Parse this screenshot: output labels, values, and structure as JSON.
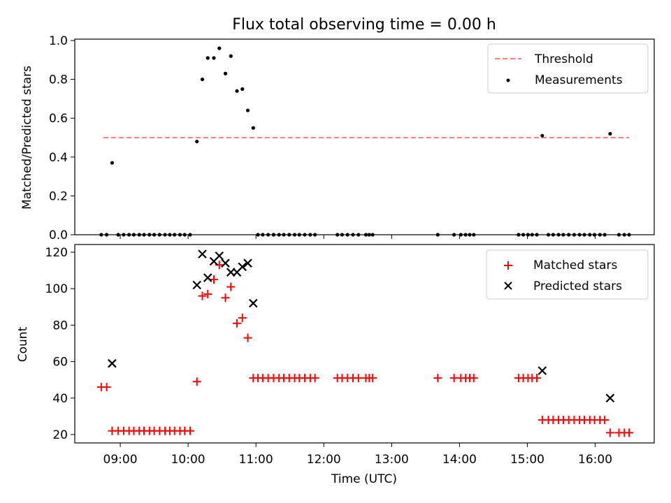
{
  "chart_data": [
    {
      "type": "scatter",
      "title": "Flux total observing time = 0.00 h",
      "xlabel": "",
      "ylabel": "Matched/Predicted stars",
      "ylim": [
        0,
        1.0
      ],
      "yticks": [
        0.0,
        0.2,
        0.4,
        0.6,
        0.8,
        1.0
      ],
      "ytick_labels": [
        "0.0",
        "0.2",
        "0.4",
        "0.6",
        "0.8",
        "1.0"
      ],
      "x_unit": "hours (UTC)",
      "xlim": [
        8.33,
        16.87
      ],
      "grid": false,
      "legend_position": "top-right",
      "threshold": {
        "name": "Threshold",
        "y": 0.5,
        "x_range": [
          8.75,
          16.5
        ],
        "color": "#ff7f7f"
      },
      "series": [
        {
          "name": "Measurements",
          "color": "#000000",
          "x": [
            8.72,
            8.8,
            8.88,
            8.97,
            9.05,
            9.13,
            9.2,
            9.28,
            9.35,
            9.43,
            9.5,
            9.58,
            9.66,
            9.73,
            9.8,
            9.88,
            9.95,
            10.03,
            10.13,
            10.21,
            10.29,
            10.38,
            10.46,
            10.55,
            10.63,
            10.72,
            10.8,
            10.88,
            10.96,
            11.03,
            11.1,
            11.18,
            11.26,
            11.34,
            11.41,
            11.49,
            11.57,
            11.64,
            11.72,
            11.8,
            11.87,
            12.2,
            12.27,
            12.35,
            12.43,
            12.51,
            12.62,
            12.67,
            12.72,
            13.68,
            13.92,
            14.02,
            14.09,
            14.15,
            14.21,
            14.87,
            14.94,
            15.01,
            15.07,
            15.14,
            15.22,
            15.31,
            15.38,
            15.46,
            15.53,
            15.61,
            15.69,
            15.77,
            15.84,
            15.92,
            15.99,
            16.07,
            16.14,
            16.22,
            16.35,
            16.43,
            16.5
          ],
          "y": [
            0,
            0,
            0.37,
            0,
            0,
            0,
            0,
            0,
            0,
            0,
            0,
            0,
            0,
            0,
            0,
            0,
            0,
            0,
            0.48,
            0.8,
            0.91,
            0.91,
            0.96,
            0.83,
            0.92,
            0.74,
            0.75,
            0.64,
            0.55,
            0,
            0,
            0,
            0,
            0,
            0,
            0,
            0,
            0,
            0,
            0,
            0,
            0,
            0,
            0,
            0,
            0,
            0,
            0,
            0,
            0,
            0,
            0,
            0,
            0,
            0,
            0,
            0,
            0,
            0,
            0,
            0.51,
            0,
            0,
            0,
            0,
            0,
            0,
            0,
            0,
            0,
            0,
            0,
            0,
            0.52,
            0,
            0,
            0
          ]
        }
      ]
    },
    {
      "type": "scatter",
      "title": "",
      "xlabel": "Time (UTC)",
      "ylabel": "Count",
      "ylim": [
        15.5,
        124
      ],
      "yticks": [
        20,
        40,
        60,
        80,
        100,
        120
      ],
      "ytick_labels": [
        "20",
        "40",
        "60",
        "80",
        "100",
        "120"
      ],
      "x_unit": "hours (UTC)",
      "xlim": [
        8.33,
        16.87
      ],
      "xticks": [
        9,
        10,
        11,
        12,
        13,
        14,
        15,
        16
      ],
      "xtick_labels": [
        "09:00",
        "10:00",
        "11:00",
        "12:00",
        "13:00",
        "14:00",
        "15:00",
        "16:00"
      ],
      "grid": false,
      "legend_position": "top-right",
      "series": [
        {
          "name": "Matched stars",
          "marker": "plus",
          "color": "#ff0000",
          "x": [
            8.72,
            8.8,
            8.88,
            8.97,
            9.05,
            9.13,
            9.2,
            9.28,
            9.35,
            9.43,
            9.5,
            9.58,
            9.66,
            9.73,
            9.8,
            9.88,
            9.95,
            10.03,
            10.13,
            10.21,
            10.29,
            10.38,
            10.46,
            10.55,
            10.63,
            10.72,
            10.8,
            10.88,
            10.96,
            11.03,
            11.1,
            11.18,
            11.26,
            11.34,
            11.41,
            11.49,
            11.57,
            11.64,
            11.72,
            11.8,
            11.87,
            12.2,
            12.27,
            12.35,
            12.43,
            12.51,
            12.62,
            12.67,
            12.72,
            13.68,
            13.92,
            14.02,
            14.09,
            14.15,
            14.21,
            14.87,
            14.94,
            15.01,
            15.07,
            15.14,
            15.22,
            15.31,
            15.38,
            15.46,
            15.53,
            15.61,
            15.69,
            15.77,
            15.84,
            15.92,
            15.99,
            16.07,
            16.14,
            16.22,
            16.35,
            16.43,
            16.5
          ],
          "y": [
            46,
            46,
            22,
            22,
            22,
            22,
            22,
            22,
            22,
            22,
            22,
            22,
            22,
            22,
            22,
            22,
            22,
            22,
            49,
            96,
            97,
            105,
            113,
            95,
            101,
            81,
            84,
            73,
            51,
            51,
            51,
            51,
            51,
            51,
            51,
            51,
            51,
            51,
            51,
            51,
            51,
            51,
            51,
            51,
            51,
            51,
            51,
            51,
            51,
            51,
            51,
            51,
            51,
            51,
            51,
            51,
            51,
            51,
            51,
            51,
            28,
            28,
            28,
            28,
            28,
            28,
            28,
            28,
            28,
            28,
            28,
            28,
            28,
            21,
            21,
            21,
            21
          ]
        },
        {
          "name": "Predicted stars",
          "marker": "x",
          "color": "#000000",
          "x": [
            8.88,
            10.13,
            10.21,
            10.29,
            10.38,
            10.46,
            10.55,
            10.63,
            10.72,
            10.8,
            10.88,
            10.96,
            15.22,
            16.22
          ],
          "y": [
            59,
            102,
            119,
            106,
            115,
            118,
            114,
            109,
            109,
            112,
            114,
            92,
            55,
            40
          ]
        }
      ]
    }
  ]
}
